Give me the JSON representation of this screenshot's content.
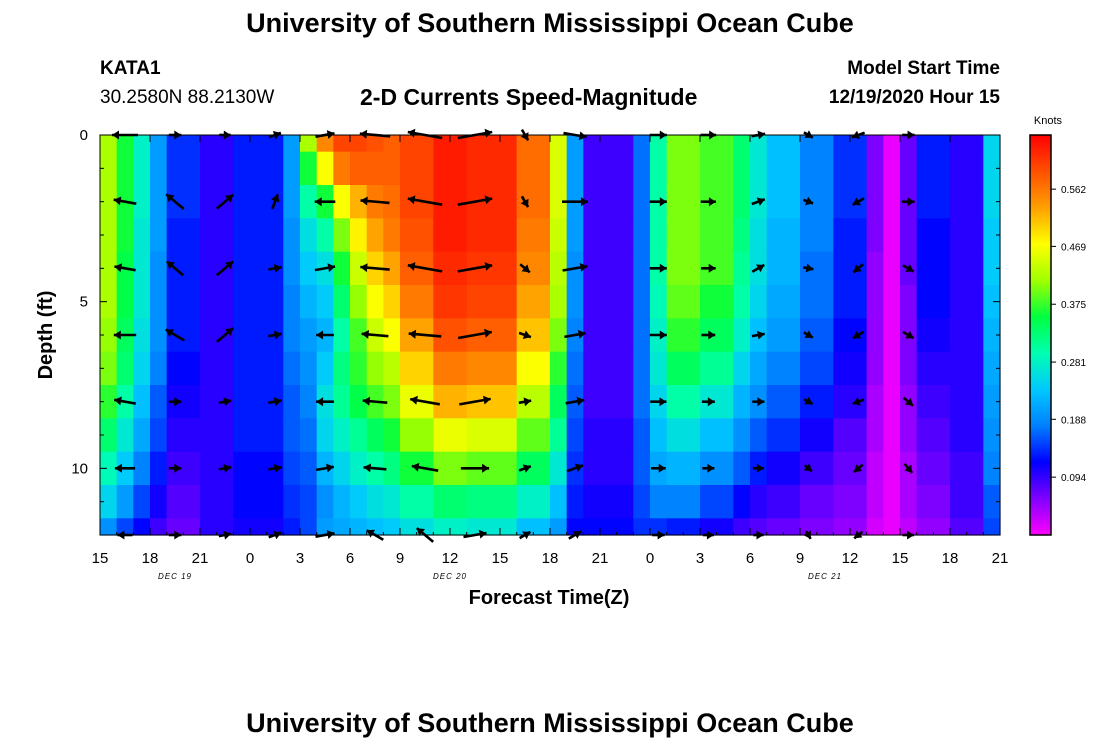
{
  "page": {
    "title_top": "University of Southern Mississippi Ocean Cube",
    "title_bottom": "University of Southern Mississippi Ocean Cube",
    "station": "KATA1",
    "coordinates": "30.2580N 88.2130W",
    "subtitle": "2-D Currents Speed-Magnitude",
    "model_start_label": "Model Start Time",
    "model_start_value": "12/19/2020 Hour 15"
  },
  "colors": {
    "colormap": [
      "#ff00ff",
      "#8000ff",
      "#0000ff",
      "#0080ff",
      "#00c8ff",
      "#00ffb0",
      "#00ff40",
      "#a0ff00",
      "#ffff00",
      "#ffa000",
      "#ff5000",
      "#ff0000"
    ],
    "arrow": "#000000",
    "axis": "#000000"
  },
  "chart_data": {
    "type": "heatmap",
    "title": "2-D Currents Speed-Magnitude",
    "xlabel": "Forecast Time(Z)",
    "ylabel": "Depth (ft)",
    "x_range_hours": [
      0,
      54
    ],
    "x_tick_labels": [
      "15",
      "18",
      "21",
      "0",
      "3",
      "6",
      "9",
      "12",
      "15",
      "18",
      "21",
      "0",
      "3",
      "6",
      "9",
      "12",
      "15",
      "18",
      "21"
    ],
    "date_labels": [
      {
        "label": "DEC 19",
        "hour": 4.5
      },
      {
        "label": "DEC 20",
        "hour": 21
      },
      {
        "label": "DEC 21",
        "hour": 43.5
      }
    ],
    "y_range": [
      0,
      12
    ],
    "y_tick_labels": [
      "0",
      "5",
      "10"
    ],
    "colorbar": {
      "label": "Knots",
      "range": [
        0,
        0.65
      ],
      "ticks": [
        "0.562",
        "0.469",
        "0.375",
        "0.281",
        "0.188",
        "0.094"
      ],
      "tick_values": [
        0.562,
        0.469,
        0.375,
        0.281,
        0.188,
        0.094
      ]
    },
    "depth_levels": [
      0,
      1,
      2,
      3,
      4,
      5,
      6,
      7,
      8,
      9,
      10,
      11,
      12
    ],
    "speed_columns": [
      {
        "start": 0,
        "end": 1,
        "values": [
          0.42,
          0.42,
          0.42,
          0.42,
          0.42,
          0.42,
          0.41,
          0.4,
          0.37,
          0.33,
          0.29,
          0.25,
          0.19
        ]
      },
      {
        "start": 1,
        "end": 2,
        "values": [
          0.36,
          0.36,
          0.36,
          0.36,
          0.35,
          0.35,
          0.34,
          0.33,
          0.3,
          0.27,
          0.24,
          0.2,
          0.15
        ]
      },
      {
        "start": 2,
        "end": 3,
        "values": [
          0.28,
          0.28,
          0.28,
          0.27,
          0.27,
          0.27,
          0.26,
          0.25,
          0.23,
          0.21,
          0.18,
          0.15,
          0.12
        ]
      },
      {
        "start": 3,
        "end": 4,
        "values": [
          0.2,
          0.2,
          0.2,
          0.2,
          0.19,
          0.19,
          0.19,
          0.18,
          0.16,
          0.15,
          0.13,
          0.11,
          0.09
        ]
      },
      {
        "start": 4,
        "end": 6,
        "values": [
          0.14,
          0.14,
          0.14,
          0.13,
          0.13,
          0.13,
          0.13,
          0.12,
          0.11,
          0.1,
          0.09,
          0.08,
          0.07
        ]
      },
      {
        "start": 6,
        "end": 8,
        "values": [
          0.1,
          0.1,
          0.1,
          0.1,
          0.1,
          0.1,
          0.1,
          0.1,
          0.1,
          0.1,
          0.1,
          0.1,
          0.1
        ]
      },
      {
        "start": 8,
        "end": 11,
        "values": [
          0.13,
          0.13,
          0.13,
          0.13,
          0.13,
          0.13,
          0.13,
          0.13,
          0.13,
          0.13,
          0.12,
          0.12,
          0.11
        ]
      },
      {
        "start": 11,
        "end": 12,
        "values": [
          0.2,
          0.2,
          0.2,
          0.19,
          0.19,
          0.18,
          0.18,
          0.17,
          0.16,
          0.16,
          0.15,
          0.14,
          0.13
        ]
      },
      {
        "start": 12,
        "end": 13,
        "values": [
          0.42,
          0.36,
          0.3,
          0.26,
          0.24,
          0.22,
          0.2,
          0.19,
          0.18,
          0.17,
          0.16,
          0.15,
          0.15
        ]
      },
      {
        "start": 13,
        "end": 14,
        "values": [
          0.55,
          0.47,
          0.36,
          0.3,
          0.26,
          0.24,
          0.22,
          0.24,
          0.26,
          0.25,
          0.22,
          0.19,
          0.2
        ]
      },
      {
        "start": 14,
        "end": 15,
        "values": [
          0.6,
          0.56,
          0.47,
          0.4,
          0.36,
          0.33,
          0.3,
          0.32,
          0.31,
          0.28,
          0.25,
          0.22,
          0.21
        ]
      },
      {
        "start": 15,
        "end": 16,
        "values": [
          0.6,
          0.58,
          0.52,
          0.48,
          0.44,
          0.41,
          0.38,
          0.37,
          0.35,
          0.31,
          0.28,
          0.24,
          0.22
        ]
      },
      {
        "start": 16,
        "end": 17,
        "values": [
          0.59,
          0.58,
          0.56,
          0.53,
          0.5,
          0.47,
          0.44,
          0.41,
          0.38,
          0.34,
          0.3,
          0.26,
          0.23
        ]
      },
      {
        "start": 17,
        "end": 18,
        "values": [
          0.58,
          0.58,
          0.57,
          0.56,
          0.53,
          0.5,
          0.47,
          0.43,
          0.4,
          0.36,
          0.32,
          0.27,
          0.24
        ]
      },
      {
        "start": 18,
        "end": 20,
        "values": [
          0.6,
          0.6,
          0.6,
          0.59,
          0.58,
          0.56,
          0.53,
          0.5,
          0.46,
          0.41,
          0.36,
          0.3,
          0.26
        ]
      },
      {
        "start": 20,
        "end": 22,
        "values": [
          0.63,
          0.63,
          0.63,
          0.63,
          0.62,
          0.61,
          0.59,
          0.56,
          0.52,
          0.46,
          0.4,
          0.33,
          0.28
        ]
      },
      {
        "start": 22,
        "end": 25,
        "values": [
          0.62,
          0.62,
          0.62,
          0.62,
          0.61,
          0.6,
          0.58,
          0.55,
          0.51,
          0.45,
          0.39,
          0.32,
          0.27
        ]
      },
      {
        "start": 25,
        "end": 27,
        "values": [
          0.57,
          0.57,
          0.57,
          0.56,
          0.55,
          0.53,
          0.51,
          0.47,
          0.43,
          0.39,
          0.34,
          0.28,
          0.23
        ]
      },
      {
        "start": 27,
        "end": 28,
        "values": [
          0.45,
          0.45,
          0.45,
          0.44,
          0.43,
          0.42,
          0.4,
          0.37,
          0.34,
          0.31,
          0.27,
          0.23,
          0.2
        ]
      },
      {
        "start": 28,
        "end": 29,
        "values": [
          0.2,
          0.2,
          0.2,
          0.2,
          0.19,
          0.19,
          0.18,
          0.17,
          0.16,
          0.15,
          0.14,
          0.13,
          0.12
        ]
      },
      {
        "start": 29,
        "end": 32,
        "values": [
          0.09,
          0.09,
          0.09,
          0.09,
          0.09,
          0.09,
          0.09,
          0.09,
          0.09,
          0.1,
          0.1,
          0.11,
          0.12
        ]
      },
      {
        "start": 32,
        "end": 33,
        "values": [
          0.17,
          0.17,
          0.17,
          0.17,
          0.17,
          0.17,
          0.17,
          0.17,
          0.17,
          0.16,
          0.16,
          0.15,
          0.14
        ]
      },
      {
        "start": 33,
        "end": 34,
        "values": [
          0.3,
          0.3,
          0.3,
          0.3,
          0.3,
          0.29,
          0.28,
          0.27,
          0.25,
          0.23,
          0.21,
          0.18,
          0.14
        ]
      },
      {
        "start": 34,
        "end": 36,
        "values": [
          0.4,
          0.4,
          0.4,
          0.4,
          0.4,
          0.39,
          0.37,
          0.34,
          0.3,
          0.26,
          0.22,
          0.18,
          0.13
        ]
      },
      {
        "start": 36,
        "end": 38,
        "values": [
          0.38,
          0.38,
          0.38,
          0.38,
          0.38,
          0.36,
          0.34,
          0.31,
          0.27,
          0.23,
          0.19,
          0.15,
          0.11
        ]
      },
      {
        "start": 38,
        "end": 39,
        "values": [
          0.33,
          0.33,
          0.33,
          0.32,
          0.31,
          0.3,
          0.28,
          0.25,
          0.22,
          0.19,
          0.16,
          0.12,
          0.09
        ]
      },
      {
        "start": 39,
        "end": 40,
        "values": [
          0.27,
          0.27,
          0.27,
          0.26,
          0.26,
          0.25,
          0.23,
          0.21,
          0.19,
          0.16,
          0.13,
          0.1,
          0.08
        ]
      },
      {
        "start": 40,
        "end": 42,
        "values": [
          0.23,
          0.23,
          0.23,
          0.22,
          0.22,
          0.21,
          0.2,
          0.18,
          0.16,
          0.14,
          0.11,
          0.09,
          0.07
        ]
      },
      {
        "start": 42,
        "end": 44,
        "values": [
          0.18,
          0.18,
          0.18,
          0.18,
          0.17,
          0.17,
          0.16,
          0.15,
          0.13,
          0.11,
          0.09,
          0.07,
          0.06
        ]
      },
      {
        "start": 44,
        "end": 46,
        "values": [
          0.14,
          0.14,
          0.14,
          0.13,
          0.13,
          0.13,
          0.12,
          0.11,
          0.1,
          0.08,
          0.07,
          0.06,
          0.05
        ]
      },
      {
        "start": 46,
        "end": 47,
        "values": [
          0.06,
          0.06,
          0.06,
          0.06,
          0.05,
          0.05,
          0.05,
          0.05,
          0.04,
          0.04,
          0.03,
          0.03,
          0.02
        ]
      },
      {
        "start": 47,
        "end": 48,
        "values": [
          0.01,
          0.01,
          0.01,
          0.01,
          0.01,
          0.01,
          0.01,
          0.01,
          0.01,
          0.01,
          0.01,
          0.01,
          0.01
        ]
      },
      {
        "start": 48,
        "end": 49,
        "values": [
          0.07,
          0.07,
          0.07,
          0.07,
          0.07,
          0.06,
          0.06,
          0.06,
          0.05,
          0.05,
          0.04,
          0.04,
          0.03
        ]
      },
      {
        "start": 49,
        "end": 51,
        "values": [
          0.13,
          0.13,
          0.13,
          0.12,
          0.12,
          0.12,
          0.11,
          0.1,
          0.09,
          0.08,
          0.07,
          0.06,
          0.05
        ]
      },
      {
        "start": 51,
        "end": 53,
        "values": [
          0.1,
          0.1,
          0.1,
          0.1,
          0.1,
          0.1,
          0.1,
          0.1,
          0.1,
          0.1,
          0.09,
          0.09,
          0.08
        ]
      },
      {
        "start": 53,
        "end": 54,
        "values": [
          0.25,
          0.25,
          0.25,
          0.24,
          0.24,
          0.23,
          0.22,
          0.21,
          0.2,
          0.19,
          0.18,
          0.16,
          0.15
        ]
      }
    ],
    "vector_times": [
      1.5,
      4.5,
      7.5,
      10.5,
      13.5,
      16.5,
      19.5,
      22.5,
      25.5,
      28.5,
      33.5,
      36.5,
      39.5,
      42.5,
      45.5,
      48.5
    ],
    "vector_depths": [
      0,
      2,
      4,
      6,
      8,
      10,
      12
    ],
    "vectors": [
      [
        [
          180,
          0.4
        ],
        [
          170,
          0.33
        ],
        [
          170,
          0.3
        ],
        [
          180,
          0.32
        ],
        [
          170,
          0.31
        ],
        [
          180,
          0.27
        ],
        [
          180,
          0.16
        ]
      ],
      [
        [
          0,
          0.1
        ],
        [
          140,
          0.33
        ],
        [
          140,
          0.3
        ],
        [
          150,
          0.3
        ],
        [
          0,
          0.1
        ],
        [
          0,
          0.1
        ],
        [
          0,
          0.1
        ]
      ],
      [
        [
          0,
          0.08
        ],
        [
          40,
          0.3
        ],
        [
          40,
          0.3
        ],
        [
          40,
          0.3
        ],
        [
          10,
          0.1
        ],
        [
          10,
          0.1
        ],
        [
          10,
          0.1
        ]
      ],
      [
        [
          20,
          0.1
        ],
        [
          70,
          0.17
        ],
        [
          10,
          0.12
        ],
        [
          10,
          0.12
        ],
        [
          10,
          0.12
        ],
        [
          10,
          0.12
        ],
        [
          20,
          0.12
        ]
      ],
      [
        [
          10,
          0.25
        ],
        [
          180,
          0.28
        ],
        [
          10,
          0.28
        ],
        [
          180,
          0.22
        ],
        [
          180,
          0.22
        ],
        [
          10,
          0.22
        ],
        [
          10,
          0.25
        ]
      ],
      [
        [
          175,
          0.5
        ],
        [
          175,
          0.47
        ],
        [
          175,
          0.48
        ],
        [
          175,
          0.42
        ],
        [
          175,
          0.37
        ],
        [
          175,
          0.33
        ],
        [
          150,
          0.25
        ]
      ],
      [
        [
          170,
          0.6
        ],
        [
          170,
          0.6
        ],
        [
          170,
          0.6
        ],
        [
          175,
          0.55
        ],
        [
          170,
          0.49
        ],
        [
          170,
          0.42
        ],
        [
          140,
          0.3
        ]
      ],
      [
        [
          10,
          0.6
        ],
        [
          10,
          0.6
        ],
        [
          10,
          0.6
        ],
        [
          10,
          0.58
        ],
        [
          10,
          0.53
        ],
        [
          0,
          0.45
        ],
        [
          10,
          0.34
        ]
      ],
      [
        [
          300,
          0.1
        ],
        [
          300,
          0.1
        ],
        [
          320,
          0.1
        ],
        [
          340,
          0.1
        ],
        [
          10,
          0.1
        ],
        [
          20,
          0.1
        ],
        [
          30,
          0.1
        ]
      ],
      [
        [
          350,
          0.34
        ],
        [
          0,
          0.4
        ],
        [
          10,
          0.38
        ],
        [
          10,
          0.3
        ],
        [
          10,
          0.24
        ],
        [
          20,
          0.2
        ],
        [
          30,
          0.14
        ]
      ],
      [
        [
          0,
          0.2
        ],
        [
          0,
          0.2
        ],
        [
          0,
          0.2
        ],
        [
          0,
          0.2
        ],
        [
          0,
          0.18
        ],
        [
          0,
          0.15
        ],
        [
          0,
          0.1
        ]
      ],
      [
        [
          0,
          0.17
        ],
        [
          0,
          0.16
        ],
        [
          0,
          0.15
        ],
        [
          0,
          0.13
        ],
        [
          0,
          0.11
        ],
        [
          0,
          0.09
        ],
        [
          0,
          0.07
        ]
      ],
      [
        [
          10,
          0.13
        ],
        [
          20,
          0.13
        ],
        [
          30,
          0.13
        ],
        [
          10,
          0.11
        ],
        [
          0,
          0.09
        ],
        [
          0,
          0.07
        ],
        [
          0,
          0.05
        ]
      ],
      [
        [
          330,
          0.05
        ],
        [
          340,
          0.05
        ],
        [
          350,
          0.05
        ],
        [
          330,
          0.05
        ],
        [
          330,
          0.04
        ],
        [
          320,
          0.03
        ],
        [
          300,
          0.02
        ]
      ],
      [
        [
          200,
          0.12
        ],
        [
          210,
          0.11
        ],
        [
          220,
          0.1
        ],
        [
          210,
          0.1
        ],
        [
          200,
          0.09
        ],
        [
          220,
          0.08
        ],
        [
          220,
          0.06
        ]
      ],
      [
        [
          0,
          0.1
        ],
        [
          0,
          0.1
        ],
        [
          330,
          0.1
        ],
        [
          330,
          0.1
        ],
        [
          320,
          0.1
        ],
        [
          310,
          0.09
        ],
        [
          0,
          0.08
        ]
      ]
    ]
  }
}
